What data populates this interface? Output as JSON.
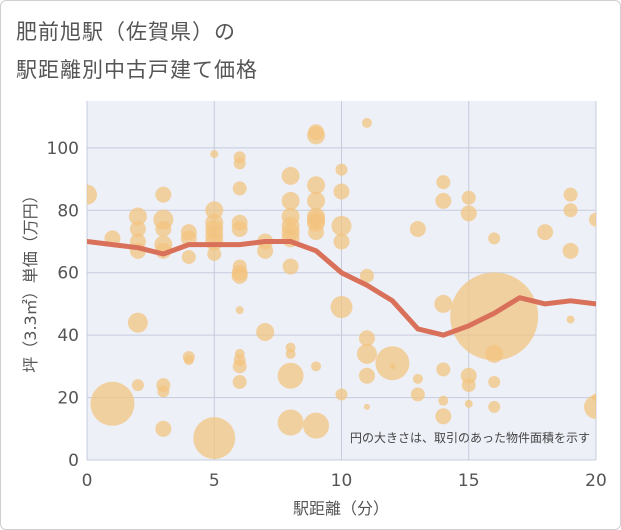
{
  "chart_data": {
    "type": "scatter",
    "title_line1": "肥前旭駅（佐賀県）の",
    "title_line2": "駅距離別中古戸建て価格",
    "xlabel": "駅距離（分）",
    "ylabel": "坪（3.3㎡）単価（万円）",
    "annotation": "円の大きさは、取引のあった物件面積を示す",
    "xlim": [
      0,
      20
    ],
    "ylim": [
      0,
      115
    ],
    "x_ticks": [
      "0",
      "5",
      "10",
      "15",
      "20"
    ],
    "y_ticks": [
      "0",
      "20",
      "40",
      "60",
      "80",
      "100"
    ],
    "colors": {
      "bubble": "#f3c47e",
      "line": "#d9705a",
      "plot_bg": "#eef0f8",
      "grid": "#c6ccdc"
    },
    "points": [
      {
        "x": 0,
        "y": 85,
        "s": 10
      },
      {
        "x": 1,
        "y": 71,
        "s": 8
      },
      {
        "x": 1,
        "y": 18,
        "s": 22
      },
      {
        "x": 2,
        "y": 78,
        "s": 9
      },
      {
        "x": 2,
        "y": 74,
        "s": 8
      },
      {
        "x": 2,
        "y": 70,
        "s": 8
      },
      {
        "x": 2,
        "y": 67,
        "s": 8
      },
      {
        "x": 2,
        "y": 44,
        "s": 10
      },
      {
        "x": 2,
        "y": 24,
        "s": 6
      },
      {
        "x": 3,
        "y": 85,
        "s": 8
      },
      {
        "x": 3,
        "y": 77,
        "s": 10
      },
      {
        "x": 3,
        "y": 74,
        "s": 8
      },
      {
        "x": 3,
        "y": 69,
        "s": 9
      },
      {
        "x": 3,
        "y": 67,
        "s": 8
      },
      {
        "x": 3,
        "y": 24,
        "s": 7
      },
      {
        "x": 3,
        "y": 22,
        "s": 6
      },
      {
        "x": 3,
        "y": 10,
        "s": 8
      },
      {
        "x": 4,
        "y": 73,
        "s": 8
      },
      {
        "x": 4,
        "y": 71,
        "s": 8
      },
      {
        "x": 4,
        "y": 65,
        "s": 7
      },
      {
        "x": 4,
        "y": 33,
        "s": 6
      },
      {
        "x": 4,
        "y": 32,
        "s": 5
      },
      {
        "x": 5,
        "y": 98,
        "s": 4
      },
      {
        "x": 5,
        "y": 80,
        "s": 9
      },
      {
        "x": 5,
        "y": 76,
        "s": 9
      },
      {
        "x": 5,
        "y": 74,
        "s": 9
      },
      {
        "x": 5,
        "y": 72,
        "s": 9
      },
      {
        "x": 5,
        "y": 70,
        "s": 9
      },
      {
        "x": 5,
        "y": 66,
        "s": 7
      },
      {
        "x": 5,
        "y": 7,
        "s": 21
      },
      {
        "x": 6,
        "y": 97,
        "s": 6
      },
      {
        "x": 6,
        "y": 95,
        "s": 6
      },
      {
        "x": 6,
        "y": 87,
        "s": 7
      },
      {
        "x": 6,
        "y": 76,
        "s": 8
      },
      {
        "x": 6,
        "y": 74,
        "s": 8
      },
      {
        "x": 6,
        "y": 62,
        "s": 7
      },
      {
        "x": 6,
        "y": 60,
        "s": 8
      },
      {
        "x": 6,
        "y": 59,
        "s": 8
      },
      {
        "x": 6,
        "y": 48,
        "s": 4
      },
      {
        "x": 6,
        "y": 34,
        "s": 5
      },
      {
        "x": 6,
        "y": 32,
        "s": 6
      },
      {
        "x": 6,
        "y": 30,
        "s": 7
      },
      {
        "x": 6,
        "y": 25,
        "s": 7
      },
      {
        "x": 7,
        "y": 70,
        "s": 8
      },
      {
        "x": 7,
        "y": 67,
        "s": 8
      },
      {
        "x": 7,
        "y": 41,
        "s": 9
      },
      {
        "x": 8,
        "y": 91,
        "s": 9
      },
      {
        "x": 8,
        "y": 83,
        "s": 9
      },
      {
        "x": 8,
        "y": 78,
        "s": 9
      },
      {
        "x": 8,
        "y": 75,
        "s": 9
      },
      {
        "x": 8,
        "y": 73,
        "s": 9
      },
      {
        "x": 8,
        "y": 71,
        "s": 9
      },
      {
        "x": 8,
        "y": 62,
        "s": 8
      },
      {
        "x": 8,
        "y": 36,
        "s": 5
      },
      {
        "x": 8,
        "y": 34,
        "s": 5
      },
      {
        "x": 8,
        "y": 27,
        "s": 13
      },
      {
        "x": 8,
        "y": 12,
        "s": 13
      },
      {
        "x": 9,
        "y": 105,
        "s": 8
      },
      {
        "x": 9,
        "y": 104,
        "s": 9
      },
      {
        "x": 9,
        "y": 88,
        "s": 9
      },
      {
        "x": 9,
        "y": 83,
        "s": 9
      },
      {
        "x": 9,
        "y": 78,
        "s": 9
      },
      {
        "x": 9,
        "y": 77,
        "s": 9
      },
      {
        "x": 9,
        "y": 76,
        "s": 9
      },
      {
        "x": 9,
        "y": 73,
        "s": 8
      },
      {
        "x": 9,
        "y": 30,
        "s": 5
      },
      {
        "x": 9,
        "y": 11,
        "s": 13
      },
      {
        "x": 10,
        "y": 93,
        "s": 6
      },
      {
        "x": 10,
        "y": 86,
        "s": 8
      },
      {
        "x": 10,
        "y": 75,
        "s": 10
      },
      {
        "x": 10,
        "y": 70,
        "s": 8
      },
      {
        "x": 10,
        "y": 49,
        "s": 11
      },
      {
        "x": 10,
        "y": 21,
        "s": 6
      },
      {
        "x": 11,
        "y": 108,
        "s": 5
      },
      {
        "x": 11,
        "y": 59,
        "s": 7
      },
      {
        "x": 11,
        "y": 39,
        "s": 8
      },
      {
        "x": 11,
        "y": 34,
        "s": 10
      },
      {
        "x": 11,
        "y": 27,
        "s": 8
      },
      {
        "x": 11,
        "y": 17,
        "s": 3
      },
      {
        "x": 12,
        "y": 31,
        "s": 17
      },
      {
        "x": 12,
        "y": 30,
        "s": 3
      },
      {
        "x": 13,
        "y": 74,
        "s": 8
      },
      {
        "x": 13,
        "y": 26,
        "s": 5
      },
      {
        "x": 13,
        "y": 21,
        "s": 7
      },
      {
        "x": 14,
        "y": 89,
        "s": 7
      },
      {
        "x": 14,
        "y": 83,
        "s": 8
      },
      {
        "x": 14,
        "y": 50,
        "s": 9
      },
      {
        "x": 14,
        "y": 29,
        "s": 7
      },
      {
        "x": 14,
        "y": 19,
        "s": 5
      },
      {
        "x": 14,
        "y": 14,
        "s": 8
      },
      {
        "x": 15,
        "y": 84,
        "s": 7
      },
      {
        "x": 15,
        "y": 79,
        "s": 8
      },
      {
        "x": 15,
        "y": 27,
        "s": 8
      },
      {
        "x": 15,
        "y": 24,
        "s": 7
      },
      {
        "x": 15,
        "y": 18,
        "s": 4
      },
      {
        "x": 16,
        "y": 46,
        "s": 44
      },
      {
        "x": 16,
        "y": 71,
        "s": 6
      },
      {
        "x": 16,
        "y": 34,
        "s": 9
      },
      {
        "x": 16,
        "y": 25,
        "s": 6
      },
      {
        "x": 16,
        "y": 17,
        "s": 6
      },
      {
        "x": 18,
        "y": 73,
        "s": 8
      },
      {
        "x": 19,
        "y": 85,
        "s": 7
      },
      {
        "x": 19,
        "y": 80,
        "s": 7
      },
      {
        "x": 19,
        "y": 67,
        "s": 8
      },
      {
        "x": 19,
        "y": 45,
        "s": 4
      },
      {
        "x": 20,
        "y": 77,
        "s": 7
      },
      {
        "x": 20,
        "y": 20,
        "s": 4
      },
      {
        "x": 20,
        "y": 17,
        "s": 12
      }
    ],
    "trend": {
      "x": [
        0,
        1,
        2,
        3,
        4,
        5,
        6,
        7,
        8,
        9,
        10,
        11,
        12,
        13,
        14,
        15,
        16,
        17,
        18,
        19,
        20
      ],
      "y": [
        70,
        69,
        68,
        66,
        69,
        69,
        69,
        70,
        70,
        67,
        60,
        56,
        51,
        42,
        40,
        43,
        47,
        52,
        50,
        51,
        50
      ]
    }
  }
}
